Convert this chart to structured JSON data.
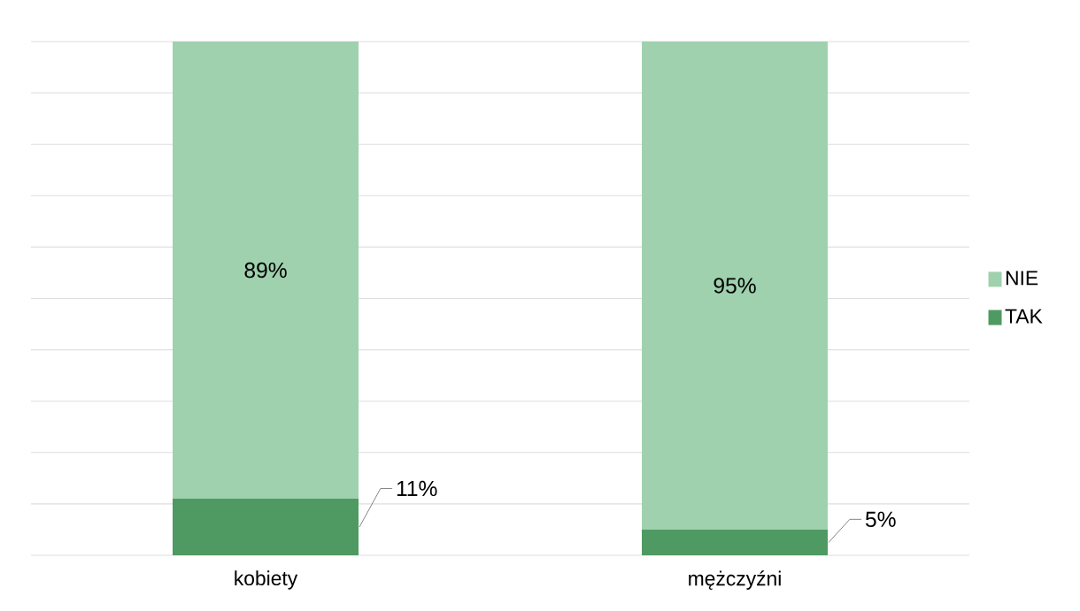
{
  "chart_data": {
    "type": "bar",
    "stacked": true,
    "categories": [
      "kobiety",
      "mężczyźni"
    ],
    "series": [
      {
        "name": "TAK",
        "color": "#4f9a62",
        "values": [
          11,
          5
        ],
        "value_labels": [
          "11%",
          "5%"
        ]
      },
      {
        "name": "NIE",
        "color": "#9fd1ae",
        "values": [
          89,
          95
        ],
        "value_labels": [
          "89%",
          "95%"
        ]
      }
    ],
    "ylim": [
      0,
      100
    ],
    "yticks": [
      {
        "value": 0,
        "label": null
      },
      {
        "value": 10,
        "label": null
      },
      {
        "value": 20,
        "label": null
      },
      {
        "value": 30,
        "label": null
      },
      {
        "value": 40,
        "label": null
      },
      {
        "value": 50,
        "label": null
      },
      {
        "value": 60,
        "label": null
      },
      {
        "value": 70,
        "label": null
      },
      {
        "value": 80,
        "label": null
      },
      {
        "value": 90,
        "label": null
      },
      {
        "value": 100,
        "label": null
      }
    ],
    "grid": "y",
    "legend": "right",
    "tick_labels": "x"
  }
}
